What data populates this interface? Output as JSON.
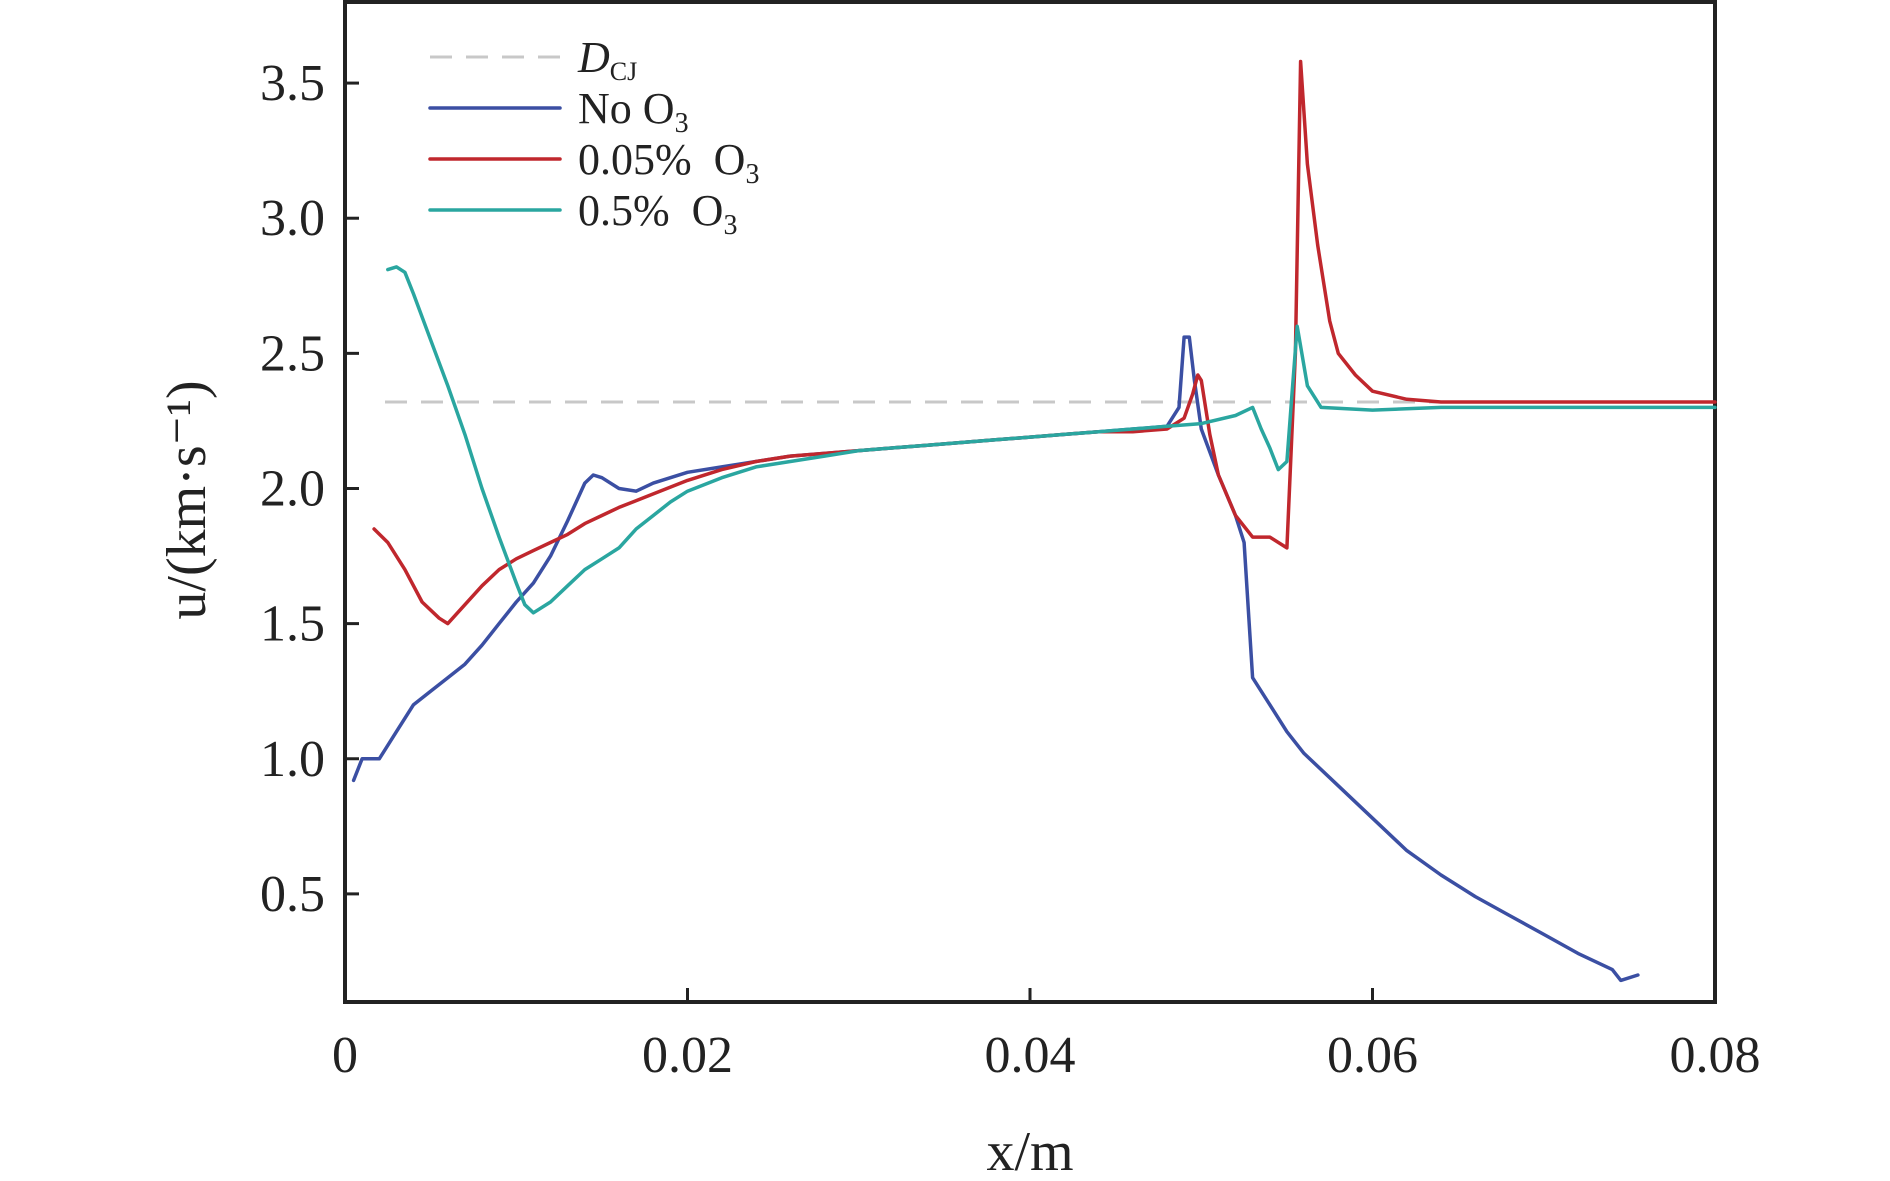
{
  "chart_data": {
    "type": "line",
    "xlabel": "x/m",
    "ylabel": "u/(km·s⁻¹)",
    "xlim": [
      0,
      0.08
    ],
    "ylim": [
      0.1,
      3.8
    ],
    "x_ticks": [
      "0",
      "0.02",
      "0.04",
      "0.06",
      "0.08"
    ],
    "x_tick_values": [
      0,
      0.02,
      0.04,
      0.06,
      0.08
    ],
    "y_ticks": [
      "0.5",
      "1.0",
      "1.5",
      "2.0",
      "2.5",
      "3.0",
      "3.5"
    ],
    "y_tick_values": [
      0.5,
      1.0,
      1.5,
      2.0,
      2.5,
      3.0,
      3.5
    ],
    "legend_position": "top-left",
    "reference_line": {
      "name": "D_CJ",
      "name_main": "D",
      "name_sub": "CJ",
      "y": 2.32,
      "color": "#c8c8c8",
      "style": "dashed"
    },
    "series": [
      {
        "name": "No O3",
        "name_main": "No O",
        "name_sub": "3",
        "color": "#3b4fa3",
        "points": [
          [
            0.0005,
            0.92
          ],
          [
            0.001,
            1.0
          ],
          [
            0.002,
            1.0
          ],
          [
            0.003,
            1.1
          ],
          [
            0.004,
            1.2
          ],
          [
            0.005,
            1.25
          ],
          [
            0.006,
            1.3
          ],
          [
            0.007,
            1.35
          ],
          [
            0.008,
            1.42
          ],
          [
            0.009,
            1.5
          ],
          [
            0.01,
            1.58
          ],
          [
            0.011,
            1.65
          ],
          [
            0.012,
            1.75
          ],
          [
            0.013,
            1.88
          ],
          [
            0.014,
            2.02
          ],
          [
            0.0145,
            2.05
          ],
          [
            0.015,
            2.04
          ],
          [
            0.016,
            2.0
          ],
          [
            0.017,
            1.99
          ],
          [
            0.018,
            2.02
          ],
          [
            0.019,
            2.04
          ],
          [
            0.02,
            2.06
          ],
          [
            0.022,
            2.08
          ],
          [
            0.024,
            2.1
          ],
          [
            0.026,
            2.12
          ],
          [
            0.028,
            2.13
          ],
          [
            0.03,
            2.14
          ],
          [
            0.032,
            2.15
          ],
          [
            0.034,
            2.16
          ],
          [
            0.036,
            2.17
          ],
          [
            0.038,
            2.18
          ],
          [
            0.04,
            2.19
          ],
          [
            0.042,
            2.2
          ],
          [
            0.044,
            2.21
          ],
          [
            0.046,
            2.22
          ],
          [
            0.048,
            2.23
          ],
          [
            0.0487,
            2.3
          ],
          [
            0.049,
            2.56
          ],
          [
            0.0493,
            2.56
          ],
          [
            0.0496,
            2.4
          ],
          [
            0.05,
            2.22
          ],
          [
            0.051,
            2.05
          ],
          [
            0.052,
            1.9
          ],
          [
            0.0525,
            1.8
          ],
          [
            0.0528,
            1.5
          ],
          [
            0.053,
            1.3
          ],
          [
            0.054,
            1.2
          ],
          [
            0.055,
            1.1
          ],
          [
            0.056,
            1.02
          ],
          [
            0.058,
            0.9
          ],
          [
            0.06,
            0.78
          ],
          [
            0.062,
            0.66
          ],
          [
            0.064,
            0.57
          ],
          [
            0.066,
            0.49
          ],
          [
            0.068,
            0.42
          ],
          [
            0.07,
            0.35
          ],
          [
            0.072,
            0.28
          ],
          [
            0.074,
            0.22
          ],
          [
            0.0745,
            0.18
          ],
          [
            0.0755,
            0.2
          ]
        ]
      },
      {
        "name": "0.05% O3",
        "name_main": "0.05%  O",
        "name_sub": "3",
        "color": "#c0272d",
        "points": [
          [
            0.0017,
            1.85
          ],
          [
            0.0025,
            1.8
          ],
          [
            0.0035,
            1.7
          ],
          [
            0.0045,
            1.58
          ],
          [
            0.0055,
            1.52
          ],
          [
            0.006,
            1.5
          ],
          [
            0.007,
            1.57
          ],
          [
            0.008,
            1.64
          ],
          [
            0.009,
            1.7
          ],
          [
            0.01,
            1.74
          ],
          [
            0.011,
            1.77
          ],
          [
            0.012,
            1.8
          ],
          [
            0.013,
            1.83
          ],
          [
            0.014,
            1.87
          ],
          [
            0.015,
            1.9
          ],
          [
            0.016,
            1.93
          ],
          [
            0.018,
            1.98
          ],
          [
            0.02,
            2.03
          ],
          [
            0.022,
            2.07
          ],
          [
            0.024,
            2.1
          ],
          [
            0.026,
            2.12
          ],
          [
            0.028,
            2.13
          ],
          [
            0.03,
            2.14
          ],
          [
            0.032,
            2.15
          ],
          [
            0.034,
            2.16
          ],
          [
            0.036,
            2.17
          ],
          [
            0.038,
            2.18
          ],
          [
            0.04,
            2.19
          ],
          [
            0.042,
            2.2
          ],
          [
            0.044,
            2.21
          ],
          [
            0.046,
            2.21
          ],
          [
            0.048,
            2.22
          ],
          [
            0.049,
            2.26
          ],
          [
            0.0495,
            2.35
          ],
          [
            0.0498,
            2.42
          ],
          [
            0.05,
            2.4
          ],
          [
            0.0505,
            2.2
          ],
          [
            0.051,
            2.05
          ],
          [
            0.052,
            1.9
          ],
          [
            0.053,
            1.82
          ],
          [
            0.054,
            1.82
          ],
          [
            0.055,
            1.78
          ],
          [
            0.0555,
            2.5
          ],
          [
            0.0558,
            3.58
          ],
          [
            0.0562,
            3.2
          ],
          [
            0.0568,
            2.9
          ],
          [
            0.0575,
            2.62
          ],
          [
            0.058,
            2.5
          ],
          [
            0.059,
            2.42
          ],
          [
            0.06,
            2.36
          ],
          [
            0.062,
            2.33
          ],
          [
            0.064,
            2.32
          ],
          [
            0.066,
            2.32
          ],
          [
            0.068,
            2.32
          ],
          [
            0.07,
            2.32
          ],
          [
            0.072,
            2.32
          ],
          [
            0.074,
            2.32
          ],
          [
            0.076,
            2.32
          ],
          [
            0.078,
            2.32
          ],
          [
            0.08,
            2.32
          ]
        ]
      },
      {
        "name": "0.5% O3",
        "name_main": "0.5%  O",
        "name_sub": "3",
        "color": "#2aa6a0",
        "points": [
          [
            0.0025,
            2.81
          ],
          [
            0.003,
            2.82
          ],
          [
            0.0035,
            2.8
          ],
          [
            0.004,
            2.72
          ],
          [
            0.005,
            2.55
          ],
          [
            0.006,
            2.38
          ],
          [
            0.007,
            2.2
          ],
          [
            0.008,
            2.0
          ],
          [
            0.009,
            1.82
          ],
          [
            0.01,
            1.65
          ],
          [
            0.0105,
            1.57
          ],
          [
            0.011,
            1.54
          ],
          [
            0.012,
            1.58
          ],
          [
            0.013,
            1.64
          ],
          [
            0.014,
            1.7
          ],
          [
            0.015,
            1.74
          ],
          [
            0.016,
            1.78
          ],
          [
            0.017,
            1.85
          ],
          [
            0.018,
            1.9
          ],
          [
            0.019,
            1.95
          ],
          [
            0.02,
            1.99
          ],
          [
            0.022,
            2.04
          ],
          [
            0.024,
            2.08
          ],
          [
            0.026,
            2.1
          ],
          [
            0.028,
            2.12
          ],
          [
            0.03,
            2.14
          ],
          [
            0.032,
            2.15
          ],
          [
            0.034,
            2.16
          ],
          [
            0.036,
            2.17
          ],
          [
            0.038,
            2.18
          ],
          [
            0.04,
            2.19
          ],
          [
            0.042,
            2.2
          ],
          [
            0.044,
            2.21
          ],
          [
            0.046,
            2.22
          ],
          [
            0.048,
            2.23
          ],
          [
            0.05,
            2.24
          ],
          [
            0.052,
            2.27
          ],
          [
            0.053,
            2.3
          ],
          [
            0.0535,
            2.22
          ],
          [
            0.054,
            2.15
          ],
          [
            0.0545,
            2.07
          ],
          [
            0.055,
            2.1
          ],
          [
            0.0553,
            2.35
          ],
          [
            0.0556,
            2.6
          ],
          [
            0.0562,
            2.38
          ],
          [
            0.057,
            2.3
          ],
          [
            0.06,
            2.29
          ],
          [
            0.064,
            2.3
          ],
          [
            0.068,
            2.3
          ],
          [
            0.072,
            2.3
          ],
          [
            0.076,
            2.3
          ],
          [
            0.08,
            2.3
          ]
        ]
      }
    ]
  }
}
